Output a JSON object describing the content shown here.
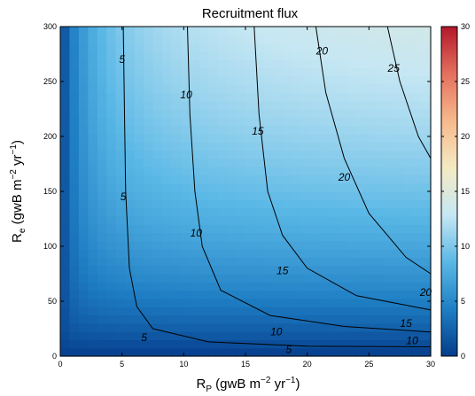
{
  "chart_data": {
    "type": "heatmap",
    "title": "Recruitment flux",
    "xlabel": {
      "main": "R",
      "sub": "P",
      "units_a": " (gwB m",
      "sup1": "−2",
      "units_b": " yr",
      "sup2": "−1",
      "units_c": ")"
    },
    "ylabel": {
      "main": "R",
      "sub": "e",
      "units_a": " (gwB m",
      "sup1": "−2",
      "units_b": " yr",
      "sup2": "−1",
      "units_c": ")"
    },
    "xlim": [
      0,
      30
    ],
    "ylim": [
      0,
      300
    ],
    "xticks": [
      "0",
      "5",
      "10",
      "15",
      "20",
      "25",
      "30"
    ],
    "yticks": [
      "0",
      "50",
      "100",
      "150",
      "200",
      "250",
      "300"
    ],
    "colorbar": {
      "range": [
        0,
        30
      ],
      "ticks": [
        "0",
        "5",
        "10",
        "15",
        "20",
        "25",
        "30"
      ],
      "colormap": [
        "#053d8c",
        "#1f7fc4",
        "#5ab8e6",
        "#c6e7f3",
        "#f4eac3",
        "#f7b98c",
        "#e4705e",
        "#b2182b"
      ]
    },
    "grid_resolution": {
      "nx": 40,
      "ny": 40
    },
    "model": "flux = 30 * Rp * Re / (Rp*Re + 300*Rp + 5*Re)",
    "contours": [
      {
        "level": 5,
        "label": "5",
        "points": [
          [
            5.1,
            300
          ],
          [
            5.2,
            220
          ],
          [
            5.3,
            150
          ],
          [
            5.6,
            80
          ],
          [
            6.2,
            45
          ],
          [
            7.5,
            25
          ],
          [
            12,
            13
          ],
          [
            20,
            9
          ],
          [
            30,
            8.5
          ]
        ]
      },
      {
        "level": 10,
        "label": "10",
        "points": [
          [
            10.3,
            300
          ],
          [
            10.5,
            220
          ],
          [
            10.9,
            150
          ],
          [
            11.5,
            100
          ],
          [
            13,
            60
          ],
          [
            17,
            37
          ],
          [
            23,
            27
          ],
          [
            30,
            22
          ]
        ]
      },
      {
        "level": 15,
        "label": "15",
        "points": [
          [
            15.7,
            300
          ],
          [
            16.1,
            220
          ],
          [
            16.8,
            150
          ],
          [
            18,
            110
          ],
          [
            20,
            80
          ],
          [
            24,
            55
          ],
          [
            30,
            42
          ]
        ]
      },
      {
        "level": 20,
        "label": "20",
        "points": [
          [
            20.7,
            300
          ],
          [
            21.5,
            240
          ],
          [
            23,
            180
          ],
          [
            25,
            130
          ],
          [
            28,
            90
          ],
          [
            30,
            75
          ]
        ]
      },
      {
        "level": 25,
        "label": "25",
        "points": [
          [
            26.5,
            300
          ],
          [
            27.5,
            250
          ],
          [
            29,
            200
          ],
          [
            30,
            180
          ]
        ]
      }
    ],
    "contour_labels": [
      {
        "text": "5",
        "x": 5.0,
        "y": 270
      },
      {
        "text": "5",
        "x": 5.1,
        "y": 145
      },
      {
        "text": "5",
        "x": 6.8,
        "y": 17
      },
      {
        "text": "5",
        "x": 18.5,
        "y": 6
      },
      {
        "text": "10",
        "x": 10.2,
        "y": 238
      },
      {
        "text": "10",
        "x": 11.0,
        "y": 112
      },
      {
        "text": "10",
        "x": 17.5,
        "y": 22
      },
      {
        "text": "10",
        "x": 28.5,
        "y": 14
      },
      {
        "text": "15",
        "x": 16.0,
        "y": 205
      },
      {
        "text": "15",
        "x": 18.0,
        "y": 78
      },
      {
        "text": "15",
        "x": 28.0,
        "y": 30
      },
      {
        "text": "20",
        "x": 21.2,
        "y": 278
      },
      {
        "text": "20",
        "x": 23.0,
        "y": 163
      },
      {
        "text": "20",
        "x": 29.6,
        "y": 58
      },
      {
        "text": "25",
        "x": 27.0,
        "y": 262
      }
    ]
  }
}
